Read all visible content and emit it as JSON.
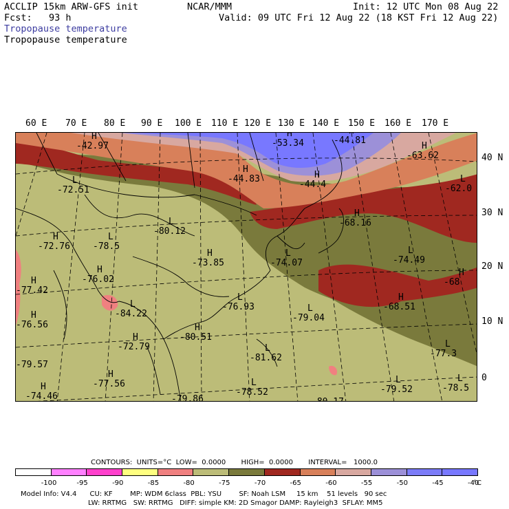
{
  "header": {
    "model": "ACCLIP 15km ARW-GFS init",
    "org": "NCAR/MMM",
    "init": "Init: 12 UTC Mon 08 Aug 22",
    "fcst": "Fcst:   93 h",
    "valid": "Valid: 09 UTC Fri 12 Aug 22 (18 KST Fri 12 Aug 22)",
    "field1": "Tropopause temperature",
    "field2": "Tropopause temperature"
  },
  "axes": {
    "lon_labels": [
      "60 E",
      "70 E",
      "80 E",
      "90 E",
      "100 E",
      "110 E",
      "120 E",
      "130 E",
      "140 E",
      "150 E",
      "160 E",
      "170 E"
    ],
    "lat_labels": [
      "40 N",
      "30 N",
      "20 N",
      "10 N",
      "0"
    ]
  },
  "map_values": [
    {
      "mark": "H",
      "text": "-42.97"
    },
    {
      "mark": "H",
      "text": "-53.34"
    },
    {
      "mark": "H",
      "text": "-44.81"
    },
    {
      "mark": "H",
      "text": "-63.62"
    },
    {
      "mark": "H",
      "text": "-44.83"
    },
    {
      "mark": "H",
      "text": "-44.4"
    },
    {
      "mark": "L",
      "text": "-62.0"
    },
    {
      "mark": "L",
      "text": "-72.51"
    },
    {
      "mark": "L",
      "text": "-80.12"
    },
    {
      "mark": "H",
      "text": "-68.16"
    },
    {
      "mark": "H",
      "text": "-72.76"
    },
    {
      "mark": "L",
      "text": "-78.5"
    },
    {
      "mark": "H",
      "text": "-73.85"
    },
    {
      "mark": "L",
      "text": "-74.07"
    },
    {
      "mark": "L",
      "text": "-74.49"
    },
    {
      "mark": "H",
      "text": "-76.02"
    },
    {
      "mark": "H",
      "text": "-68"
    },
    {
      "mark": "H",
      "text": "-77.42"
    },
    {
      "mark": "L",
      "text": "-76.93"
    },
    {
      "mark": "H",
      "text": "-68.51"
    },
    {
      "mark": "L",
      "text": "-84.22"
    },
    {
      "mark": "L",
      "text": "-79.04"
    },
    {
      "mark": "H",
      "text": "-76.56"
    },
    {
      "mark": "H",
      "text": "-80.51"
    },
    {
      "mark": "H",
      "text": "-72.79"
    },
    {
      "mark": "L",
      "text": "-77.3"
    },
    {
      "mark": "L",
      "text": "-81.62"
    },
    {
      "mark": "",
      "text": "-79.57"
    },
    {
      "mark": "L",
      "text": "-79.52"
    },
    {
      "mark": "H",
      "text": "-77.56"
    },
    {
      "mark": "L",
      "text": "-78.52"
    },
    {
      "mark": "L",
      "text": "-78.5"
    },
    {
      "mark": "H",
      "text": "-74.46"
    },
    {
      "mark": "",
      "text": "-79.86"
    },
    {
      "mark": "",
      "text": "-80.17"
    }
  ],
  "footer": {
    "contours": "CONTOURS:  UNITS=°C  LOW=  0.0000       HIGH=  0.0000       INTERVAL=   1000.0",
    "unit": "°C",
    "line1": "Model Info: V4.4      CU: KF        MP: WDM 6class  PBL: YSU        SF: Noah LSM     15 km    51 levels   90 sec",
    "line2": "LW: RRTMG   SW: RRTMG   DIFF: simple KM: 2D Smagor DAMP: Rayleigh3  SFLAY: MM5"
  },
  "colorbar": {
    "colors": [
      "#ffffff",
      "#ff80ff",
      "#ff40cc",
      "#ffff80",
      "#f08080",
      "#bcbc78",
      "#7a7a3c",
      "#a02820",
      "#d8805a",
      "#d8a8a0",
      "#9c90d8",
      "#7c7cf8",
      "#7878ff"
    ],
    "ticks": [
      "-100",
      "-95",
      "-90",
      "-85",
      "-80",
      "-75",
      "-70",
      "-65",
      "-60",
      "-55",
      "-50",
      "-45",
      "-40"
    ]
  },
  "legend_colors": {
    "land_shade": "#bcbc78",
    "olive": "#7a7a3c",
    "dark_red": "#a02820",
    "orange": "#d8805a",
    "pink": "#d8a8a0",
    "lavender": "#9c90d8",
    "blue": "#7878ff",
    "salmon": "#f08080"
  }
}
